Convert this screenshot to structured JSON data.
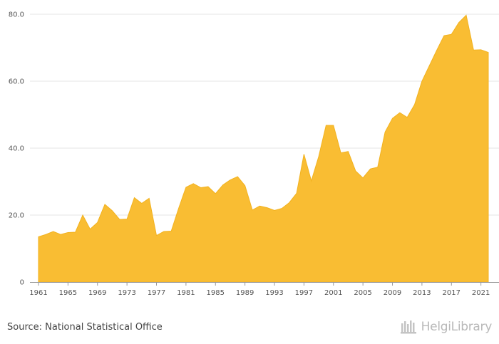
{
  "chart_data": {
    "type": "area",
    "title": "",
    "xlabel": "",
    "ylabel": "",
    "ylim": [
      0,
      80
    ],
    "yticks": [
      0,
      20,
      40,
      60,
      80
    ],
    "ytick_labels": [
      "0",
      "20.0",
      "40.0",
      "60.0",
      "80.0"
    ],
    "xticks": [
      1961,
      1965,
      1969,
      1973,
      1977,
      1981,
      1985,
      1989,
      1993,
      1997,
      2001,
      2005,
      2009,
      2013,
      2017,
      2021
    ],
    "x": [
      1961,
      1962,
      1963,
      1964,
      1965,
      1966,
      1967,
      1968,
      1969,
      1970,
      1971,
      1972,
      1973,
      1974,
      1975,
      1976,
      1977,
      1978,
      1979,
      1980,
      1981,
      1982,
      1983,
      1984,
      1985,
      1986,
      1987,
      1988,
      1989,
      1990,
      1991,
      1992,
      1993,
      1994,
      1995,
      1996,
      1997,
      1998,
      1999,
      2000,
      2001,
      2002,
      2003,
      2004,
      2005,
      2006,
      2007,
      2008,
      2009,
      2010,
      2011,
      2012,
      2013,
      2014,
      2015,
      2016,
      2017,
      2018,
      2019,
      2020,
      2021,
      2022
    ],
    "series": [
      {
        "values": [
          13.5,
          14.2,
          15.1,
          14.2,
          14.8,
          14.9,
          20.0,
          15.8,
          17.8,
          23.2,
          21.3,
          18.7,
          18.8,
          25.2,
          23.5,
          25.0,
          13.9,
          15.1,
          15.2,
          22.0,
          28.3,
          29.4,
          28.2,
          28.5,
          26.4,
          29.0,
          30.5,
          31.5,
          28.8,
          21.5,
          22.7,
          22.2,
          21.4,
          22.0,
          23.7,
          26.5,
          38.2,
          30.2,
          37.5,
          46.8,
          46.8,
          38.6,
          39.0,
          33.2,
          31.1,
          33.8,
          34.3,
          44.8,
          48.9,
          50.6,
          49.2,
          53.0,
          60.0,
          64.6,
          69.2,
          73.6,
          74.0,
          77.5,
          79.7,
          69.3,
          69.4,
          68.6
        ],
        "color": "#f9bd33"
      }
    ],
    "grid": true
  },
  "footer": {
    "source": "Source: National Statistical Office",
    "logo": "HelgiLibrary"
  }
}
